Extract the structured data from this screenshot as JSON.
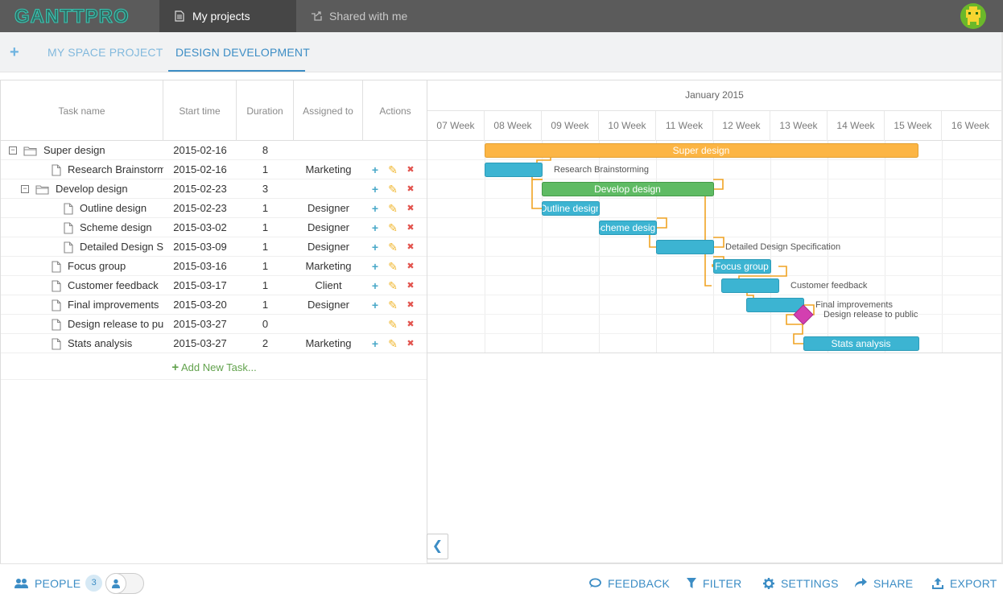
{
  "app": {
    "logo_text": "GANTTPRO",
    "top_tabs": [
      {
        "label": "My projects"
      },
      {
        "label": "Shared with me"
      }
    ]
  },
  "project_tabs": [
    {
      "label": "MY SPACE PROJECT"
    },
    {
      "label": "DESIGN DEVELOPMENT"
    }
  ],
  "grid": {
    "columns": [
      "Task name",
      "Start time",
      "Duration",
      "Assigned to",
      "Actions"
    ],
    "rows": [
      {
        "name": "Super design",
        "start": "2015-02-16",
        "duration": "8",
        "assigned": ""
      },
      {
        "name": "Research Brainstorming",
        "start": "2015-02-16",
        "duration": "1",
        "assigned": "Marketing"
      },
      {
        "name": "Develop design",
        "start": "2015-02-23",
        "duration": "3",
        "assigned": ""
      },
      {
        "name": "Outline design",
        "start": "2015-02-23",
        "duration": "1",
        "assigned": "Designer"
      },
      {
        "name": "Scheme design",
        "start": "2015-03-02",
        "duration": "1",
        "assigned": "Designer"
      },
      {
        "name": "Detailed Design Specification",
        "start": "2015-03-09",
        "duration": "1",
        "assigned": "Designer"
      },
      {
        "name": "Focus group",
        "start": "2015-03-16",
        "duration": "1",
        "assigned": "Marketing"
      },
      {
        "name": "Customer feedback",
        "start": "2015-03-17",
        "duration": "1",
        "assigned": "Client"
      },
      {
        "name": "Final improvements",
        "start": "2015-03-20",
        "duration": "1",
        "assigned": "Designer"
      },
      {
        "name": "Design release to public",
        "start": "2015-03-27",
        "duration": "0",
        "assigned": ""
      },
      {
        "name": "Stats analysis",
        "start": "2015-03-27",
        "duration": "2",
        "assigned": "Marketing"
      }
    ],
    "add_new_label": "Add New Task..."
  },
  "timeline": {
    "month": "January 2015",
    "weeks": [
      "07 Week",
      "08 Week",
      "09 Week",
      "10 Week",
      "11 Week",
      "12 Week",
      "13 Week",
      "14 Week",
      "15 Week",
      "16 Week"
    ],
    "bar_labels": {
      "super": "Super design",
      "research": "Research Brainstorming",
      "develop": "Develop design",
      "outline": "Outline design",
      "scheme": "Scheme design",
      "detailed": "Detailed Design Specification",
      "focus": "Focus group",
      "customer": "Customer feedback",
      "final": "Final improvements",
      "release": "Design release to public",
      "stats": "Stats analysis"
    }
  },
  "bottom": {
    "people_label": "PEOPLE",
    "people_count": "3",
    "feedback": "FEEDBACK",
    "filter": "FILTER",
    "settings": "SETTINGS",
    "share": "SHARE",
    "export": "EXPORT"
  },
  "colors": {
    "accent": "#3c8dc5",
    "summary_bar": "#fcb544",
    "parent_bar": "#5fbb64",
    "task_bar": "#3cb4d2",
    "milestone": "#d33fb0",
    "link": "#f0a323"
  }
}
